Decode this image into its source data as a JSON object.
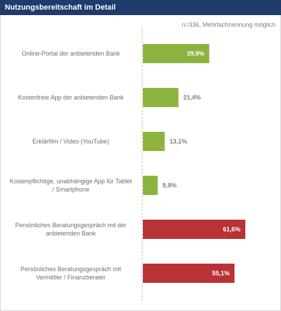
{
  "header": {
    "title": "Nutzungsbereitschaft im Detail"
  },
  "note": "n=336, Mehrfachnennung möglich",
  "colors": {
    "header": "#1f3a6b",
    "green": "#8db33f",
    "red": "#b83236"
  },
  "chart_data": {
    "type": "bar",
    "orientation": "horizontal",
    "title": "Nutzungsbereitschaft im Detail",
    "categories": [
      "Online-Portal der anbietenden Bank",
      "Kostenfreie App der anbietenden Bank",
      "Erklärfilm / Video (YouTube)",
      "Kostenpflichtige, unabhängige App für Tablet / Smartphone",
      "Persönliches Beratungsgespräch mit der anbietenden Bank",
      "Persönliches Beratungsgespräch mit Vermittler / Finanzberater"
    ],
    "category_lines": [
      [
        "Online-Portal der anbietenden Bank"
      ],
      [
        "Kostenfreie App der anbietenden Bank"
      ],
      [
        "Erklärfilm / Video (YouTube)"
      ],
      [
        "Kostenpflichtige, unabhängige App für Tablet",
        "/ Smartphone"
      ],
      [
        "Persönliches Beratungsgespräch mit der",
        "anbietenden Bank"
      ],
      [
        "Persönliches Beratungsgespräch mit",
        "Vermittler / Finanzberater"
      ]
    ],
    "values": [
      39.9,
      21.4,
      13.1,
      8.9,
      61.6,
      55.1
    ],
    "value_labels": [
      "39,9%",
      "21,4%",
      "13,1%",
      "8,9%",
      "61,6%",
      "55,1%"
    ],
    "bar_colors": [
      "#8db33f",
      "#8db33f",
      "#8db33f",
      "#8db33f",
      "#b83236",
      "#b83236"
    ],
    "xlim": [
      0,
      100
    ],
    "grid": false
  }
}
